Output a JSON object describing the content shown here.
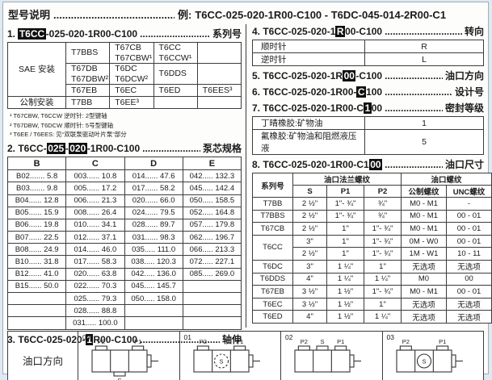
{
  "dots": "........................................................................................................................",
  "header": {
    "title": "型号说明",
    "example_prefix": "例:",
    "example": "T6CC-025-020-1R00-C100 - T6DC-045-014-2R00-C1"
  },
  "sections": {
    "s1": {
      "segments": [
        {
          "t": "1. "
        },
        {
          "t": "T6CC",
          "hl": true
        },
        {
          "t": "-025-020-1R00-C100"
        }
      ],
      "label": "系列号"
    },
    "s2": {
      "segments": [
        {
          "t": "2. T6CC-"
        },
        {
          "t": "025",
          "hl": true
        },
        {
          "t": "-"
        },
        {
          "t": "020",
          "hl": true
        },
        {
          "t": "-1R00-C100"
        }
      ],
      "label": "泵芯规格"
    },
    "s3": {
      "segments": [
        {
          "t": "3. T6CC-025-020-"
        },
        {
          "t": "1",
          "hl": true
        },
        {
          "t": "R00-C100"
        }
      ],
      "label": "轴伸"
    },
    "s4": {
      "segments": [
        {
          "t": "4. T6CC-025-020-1"
        },
        {
          "t": "R",
          "hl": true
        },
        {
          "t": "00-C100"
        }
      ],
      "label": "转向"
    },
    "s5": {
      "segments": [
        {
          "t": "5. T6CC-025-020-1R"
        },
        {
          "t": "00",
          "hl": true
        },
        {
          "t": "-C100"
        }
      ],
      "label": "油口方向"
    },
    "s6": {
      "segments": [
        {
          "t": "6. T6CC-025-020-1R00-"
        },
        {
          "t": "C",
          "hl": true
        },
        {
          "t": "100"
        }
      ],
      "label": "设计号"
    },
    "s7": {
      "segments": [
        {
          "t": "7. T6CC-025-020-1R00-C"
        },
        {
          "t": "1",
          "hl": true
        },
        {
          "t": "00"
        }
      ],
      "label": "密封等级"
    },
    "s8": {
      "segments": [
        {
          "t": "8. T6CC-025-020-1R00-C1"
        },
        {
          "t": "00",
          "hl": true
        }
      ],
      "label": "油口尺寸"
    }
  },
  "series_table": {
    "sae_label": "SAE 安装",
    "metric_label": "公制安装",
    "r1": [
      "T7BBS",
      "T67CB\nT67CBW¹",
      "T6CC\nT6CCW¹",
      ""
    ],
    "r2": [
      "T67DB\nT67DBW²",
      "T6DC\nT6DCW²",
      "T6DDS",
      ""
    ],
    "r3": [
      "T67EB",
      "T6EC",
      "T6ED",
      "T6EES³"
    ],
    "r4": [
      "T7BB",
      "T6EE³",
      "",
      ""
    ],
    "footnotes": [
      "¹ T67CBW, T6CCW 逆时针: 2型键轴",
      "² T67DBW, T6DCW 顺时针: 5号型键轴",
      "³ T6EE / T6EES: 见“双联泵驱动叶片泵”部分"
    ]
  },
  "core_table": {
    "headers": [
      "B",
      "C",
      "D",
      "E"
    ],
    "rows": [
      [
        "B02....... 5.8",
        "003...... 10.8",
        "014...... 47.6",
        "042..... 132.3"
      ],
      [
        "B03....... 9.8",
        "005...... 17.2",
        "017...... 58.2",
        "045..... 142.4"
      ],
      [
        "B04...... 12.8",
        "006...... 21.3",
        "020...... 66.0",
        "050..... 158.5"
      ],
      [
        "B05...... 15.9",
        "008...... 26.4",
        "024...... 79.5",
        "052..... 164.8"
      ],
      [
        "B06...... 19.8",
        "010...... 34.1",
        "028...... 89.7",
        "057..... 179.8"
      ],
      [
        "B07...... 22.5",
        "012...... 37.1",
        "031...... 98.3",
        "062..... 196.7"
      ],
      [
        "B08...... 24.9",
        "014...... 46.0",
        "035..... 111.0",
        "066..... 213.3"
      ],
      [
        "B10...... 31.8",
        "017...... 58.3",
        "038..... 120.3",
        "072..... 227.1"
      ],
      [
        "B12...... 41.0",
        "020...... 63.8",
        "042..... 136.0",
        "085..... 269.0"
      ],
      [
        "B15...... 50.0",
        "022...... 70.3",
        "045..... 145.7",
        ""
      ],
      [
        "",
        "025...... 79.3",
        "050..... 158.0",
        ""
      ],
      [
        "",
        "028...... 88.8",
        "",
        ""
      ],
      [
        "",
        "031..... 100.0",
        "",
        ""
      ]
    ]
  },
  "rotation_table": {
    "rows": [
      [
        "顺时针",
        "R"
      ],
      [
        "逆时针",
        "L"
      ]
    ]
  },
  "seal_table": {
    "rows": [
      [
        "丁晴橡胶:矿物油",
        "1"
      ],
      [
        "氟橡胶:矿物油和阻燃液压液",
        "5"
      ]
    ]
  },
  "port_table": {
    "col_series": "系列号",
    "group_flange": "油口法兰螺纹",
    "group_thread": "油口螺纹",
    "sub": [
      "S",
      "P1",
      "P2",
      "公制螺纹",
      "UNC螺纹"
    ],
    "rows": [
      [
        "T7BB",
        "2 ½\"",
        "1\"- ¾\"",
        "¾\"",
        "M0 - M1",
        "-"
      ],
      [
        "T7BBS",
        "2 ½\"",
        "1\"- ¾\"",
        "¾\"",
        "M0 - M1",
        "00 - 01"
      ],
      [
        "T67CB",
        "2 ½\"",
        "1\"",
        "1\"- ¾\"",
        "M0 - M1",
        "00 - 01"
      ],
      [
        {
          "t": "T6CC",
          "rowspan": 2
        },
        "3\"",
        "1\"",
        "1\"- ¾\"",
        "0M - W0",
        "00 - 01"
      ],
      [
        null,
        "2 ½\"",
        "1\"",
        "1\"- ¾\"",
        "1M - W1",
        "10 - 11"
      ],
      [
        "T6DC",
        "3\"",
        "1 ¼\"",
        "1\"",
        "无选项",
        "无选项"
      ],
      [
        "T6DDS",
        "4\"",
        "1 ¼\"",
        "1 ¼\"",
        "M0",
        "00"
      ],
      [
        "T67EB",
        "3 ½\"",
        "1 ½\"",
        "1\"- ¾\"",
        "M0 - M1",
        "00 - 01"
      ],
      [
        "T6EC",
        "3 ½\"",
        "1 ½\"",
        "1\"",
        "无选项",
        "无选项"
      ],
      [
        "T6ED",
        "4\"",
        "1 ½\"",
        "1 ¼\"",
        "无选项",
        "无选项"
      ]
    ]
  },
  "ports_section": {
    "label": "油口方向",
    "items": [
      {
        "id": "00",
        "top": [
          "P2",
          "P1"
        ],
        "bottom": "S"
      },
      {
        "id": "01",
        "top": [
          "P2",
          "P1"
        ],
        "center": "S",
        "dashed": true
      },
      {
        "id": "02",
        "top": [
          "P2",
          "S",
          "P1"
        ]
      },
      {
        "id": "03",
        "top": [
          "P2",
          "P1"
        ],
        "center": "S",
        "dashed": false
      }
    ]
  }
}
